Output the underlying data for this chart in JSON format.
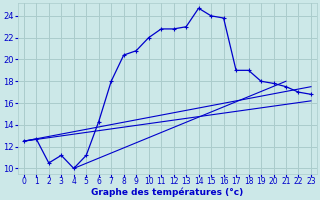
{
  "xlabel": "Graphe des températures (°c)",
  "background_color": "#cce8e8",
  "grid_color": "#aacccc",
  "line_color": "#0000cc",
  "xlim": [
    -0.5,
    23.5
  ],
  "ylim": [
    9.5,
    25.2
  ],
  "yticks": [
    10,
    12,
    14,
    16,
    18,
    20,
    22,
    24
  ],
  "xticks": [
    0,
    1,
    2,
    3,
    4,
    5,
    6,
    7,
    8,
    9,
    10,
    11,
    12,
    13,
    14,
    15,
    16,
    17,
    18,
    19,
    20,
    21,
    22,
    23
  ],
  "line1_x": [
    0,
    1,
    2,
    3,
    4,
    5,
    6,
    7,
    8,
    9,
    10,
    11,
    12,
    13,
    14,
    15,
    16,
    17,
    18,
    19,
    20,
    21,
    22,
    23
  ],
  "line1_y": [
    12.5,
    12.7,
    10.5,
    11.2,
    10.0,
    11.2,
    14.3,
    18.0,
    20.4,
    20.8,
    22.0,
    22.8,
    22.8,
    23.0,
    24.7,
    24.0,
    23.8,
    19.0,
    19.0,
    18.0,
    17.8,
    17.5,
    17.0,
    16.8
  ],
  "line2_x": [
    0,
    23
  ],
  "line2_y": [
    12.5,
    17.5
  ],
  "line3_x": [
    0,
    23
  ],
  "line3_y": [
    12.5,
    16.2
  ],
  "line4_x": [
    4,
    21
  ],
  "line4_y": [
    10.0,
    18.0
  ]
}
